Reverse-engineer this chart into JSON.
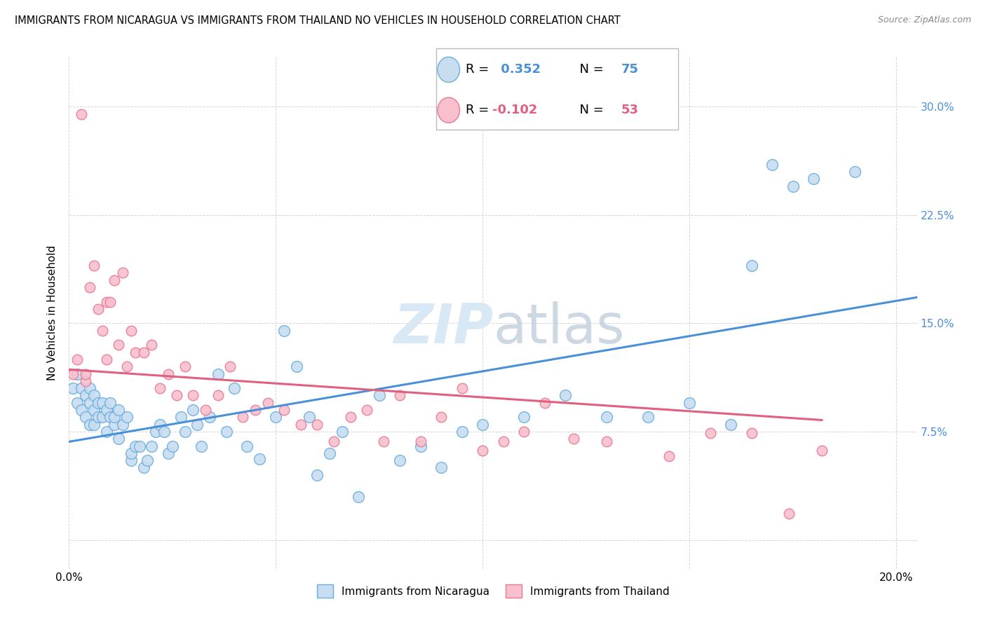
{
  "title": "IMMIGRANTS FROM NICARAGUA VS IMMIGRANTS FROM THAILAND NO VEHICLES IN HOUSEHOLD CORRELATION CHART",
  "source": "Source: ZipAtlas.com",
  "ylabel": "No Vehicles in Household",
  "xlim": [
    0.0,
    0.205
  ],
  "ylim": [
    -0.02,
    0.335
  ],
  "yticks": [
    0.0,
    0.075,
    0.15,
    0.225,
    0.3
  ],
  "ytick_labels": [
    "",
    "7.5%",
    "15.0%",
    "22.5%",
    "30.0%"
  ],
  "xticks": [
    0.0,
    0.05,
    0.1,
    0.15,
    0.2
  ],
  "xtick_labels": [
    "0.0%",
    "",
    "",
    "",
    "20.0%"
  ],
  "r_nicaragua": 0.352,
  "n_nicaragua": 75,
  "r_thailand": -0.102,
  "n_thailand": 53,
  "color_nicaragua": "#c8ddf0",
  "color_nicaragua_edge": "#6aaee0",
  "color_nicaragua_line": "#4a90d9",
  "color_thailand": "#f8c0cc",
  "color_thailand_edge": "#e87898",
  "color_thailand_line": "#e06080",
  "watermark_color": "#d8e8f4",
  "nicaragua_scatter_x": [
    0.001,
    0.002,
    0.002,
    0.003,
    0.003,
    0.004,
    0.004,
    0.005,
    0.005,
    0.005,
    0.006,
    0.006,
    0.006,
    0.007,
    0.007,
    0.008,
    0.008,
    0.009,
    0.009,
    0.01,
    0.01,
    0.011,
    0.011,
    0.012,
    0.012,
    0.013,
    0.014,
    0.015,
    0.015,
    0.016,
    0.017,
    0.018,
    0.019,
    0.02,
    0.021,
    0.022,
    0.023,
    0.024,
    0.025,
    0.027,
    0.028,
    0.03,
    0.031,
    0.032,
    0.034,
    0.036,
    0.038,
    0.04,
    0.043,
    0.046,
    0.05,
    0.052,
    0.055,
    0.058,
    0.06,
    0.063,
    0.066,
    0.07,
    0.075,
    0.08,
    0.085,
    0.09,
    0.095,
    0.1,
    0.11,
    0.12,
    0.13,
    0.14,
    0.15,
    0.16,
    0.165,
    0.17,
    0.175,
    0.18,
    0.19
  ],
  "nicaragua_scatter_y": [
    0.105,
    0.115,
    0.095,
    0.105,
    0.09,
    0.1,
    0.085,
    0.095,
    0.105,
    0.08,
    0.1,
    0.09,
    0.08,
    0.095,
    0.085,
    0.095,
    0.085,
    0.09,
    0.075,
    0.085,
    0.095,
    0.08,
    0.085,
    0.09,
    0.07,
    0.08,
    0.085,
    0.055,
    0.06,
    0.065,
    0.065,
    0.05,
    0.055,
    0.065,
    0.075,
    0.08,
    0.075,
    0.06,
    0.065,
    0.085,
    0.075,
    0.09,
    0.08,
    0.065,
    0.085,
    0.115,
    0.075,
    0.105,
    0.065,
    0.056,
    0.085,
    0.145,
    0.12,
    0.085,
    0.045,
    0.06,
    0.075,
    0.03,
    0.1,
    0.055,
    0.065,
    0.05,
    0.075,
    0.08,
    0.085,
    0.1,
    0.085,
    0.085,
    0.095,
    0.08,
    0.19,
    0.26,
    0.245,
    0.25,
    0.255
  ],
  "thailand_scatter_x": [
    0.001,
    0.002,
    0.003,
    0.004,
    0.004,
    0.005,
    0.006,
    0.007,
    0.008,
    0.009,
    0.009,
    0.01,
    0.011,
    0.012,
    0.013,
    0.014,
    0.015,
    0.016,
    0.018,
    0.02,
    0.022,
    0.024,
    0.026,
    0.028,
    0.03,
    0.033,
    0.036,
    0.039,
    0.042,
    0.045,
    0.048,
    0.052,
    0.056,
    0.06,
    0.064,
    0.068,
    0.072,
    0.076,
    0.08,
    0.085,
    0.09,
    0.095,
    0.1,
    0.105,
    0.11,
    0.115,
    0.122,
    0.13,
    0.145,
    0.155,
    0.165,
    0.174,
    0.182
  ],
  "thailand_scatter_y": [
    0.115,
    0.125,
    0.295,
    0.11,
    0.115,
    0.175,
    0.19,
    0.16,
    0.145,
    0.165,
    0.125,
    0.165,
    0.18,
    0.135,
    0.185,
    0.12,
    0.145,
    0.13,
    0.13,
    0.135,
    0.105,
    0.115,
    0.1,
    0.12,
    0.1,
    0.09,
    0.1,
    0.12,
    0.085,
    0.09,
    0.095,
    0.09,
    0.08,
    0.08,
    0.068,
    0.085,
    0.09,
    0.068,
    0.1,
    0.068,
    0.085,
    0.105,
    0.062,
    0.068,
    0.075,
    0.095,
    0.07,
    0.068,
    0.058,
    0.074,
    0.074,
    0.018,
    0.062
  ],
  "nicaragua_line_x": [
    0.0,
    0.205
  ],
  "nicaragua_line_y": [
    0.068,
    0.168
  ],
  "thailand_line_x": [
    0.0,
    0.182
  ],
  "thailand_line_y": [
    0.118,
    0.083
  ]
}
